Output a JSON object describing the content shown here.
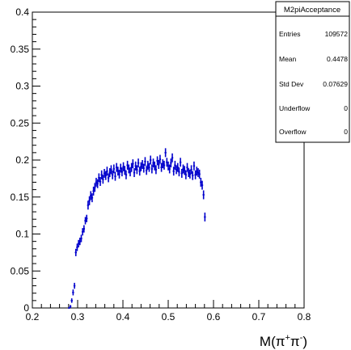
{
  "chart_data": {
    "type": "scatter",
    "style": "histogram-error-bars",
    "xlabel_parts": [
      "M(",
      "π",
      "+",
      "π",
      "-",
      ")"
    ],
    "ylabel": "",
    "xlim": [
      0.2,
      0.8
    ],
    "ylim": [
      0,
      0.4
    ],
    "x_ticks": [
      0.2,
      0.3,
      0.4,
      0.5,
      0.6,
      0.7,
      0.8
    ],
    "x_tick_labels": [
      "0.2",
      "0.3",
      "0.4",
      "0.5",
      "0.6",
      "0.7",
      "0.8"
    ],
    "y_ticks": [
      0,
      0.05,
      0.1,
      0.15,
      0.2,
      0.25,
      0.3,
      0.35,
      0.4
    ],
    "y_tick_labels": [
      "0",
      "0.05",
      "0.1",
      "0.15",
      "0.2",
      "0.25",
      "0.3",
      "0.35",
      "0.4"
    ],
    "grid": false,
    "marker_color": "#0000cc",
    "series": [
      {
        "x": [
          0.281,
          0.284,
          0.287,
          0.29,
          0.293,
          0.296,
          0.299,
          0.302,
          0.305,
          0.308,
          0.311,
          0.314,
          0.317,
          0.32,
          0.323,
          0.326,
          0.329,
          0.332,
          0.335,
          0.338,
          0.341,
          0.344,
          0.347,
          0.35,
          0.353,
          0.356,
          0.359,
          0.362,
          0.365,
          0.368,
          0.371,
          0.374,
          0.377,
          0.38,
          0.383,
          0.386,
          0.389,
          0.392,
          0.395,
          0.398,
          0.401,
          0.404,
          0.407,
          0.41,
          0.413,
          0.416,
          0.419,
          0.422,
          0.425,
          0.428,
          0.431,
          0.434,
          0.437,
          0.44,
          0.443,
          0.446,
          0.449,
          0.452,
          0.455,
          0.458,
          0.461,
          0.464,
          0.467,
          0.47,
          0.473,
          0.476,
          0.479,
          0.482,
          0.485,
          0.488,
          0.491,
          0.494,
          0.497,
          0.5,
          0.503,
          0.506,
          0.509,
          0.512,
          0.515,
          0.518,
          0.521,
          0.524,
          0.527,
          0.53,
          0.533,
          0.536,
          0.539,
          0.542,
          0.545,
          0.548,
          0.551,
          0.554,
          0.557,
          0.56,
          0.563,
          0.566,
          0.569,
          0.572,
          0.575,
          0.578,
          0.581
        ],
        "y": [
          0.0,
          0.002,
          0.01,
          0.021,
          0.03,
          0.075,
          0.082,
          0.087,
          0.09,
          0.094,
          0.103,
          0.107,
          0.118,
          0.121,
          0.139,
          0.145,
          0.152,
          0.149,
          0.158,
          0.163,
          0.17,
          0.168,
          0.176,
          0.171,
          0.18,
          0.174,
          0.182,
          0.179,
          0.185,
          0.176,
          0.183,
          0.187,
          0.18,
          0.188,
          0.178,
          0.19,
          0.185,
          0.181,
          0.189,
          0.184,
          0.191,
          0.186,
          0.18,
          0.193,
          0.188,
          0.184,
          0.19,
          0.195,
          0.183,
          0.192,
          0.187,
          0.196,
          0.185,
          0.191,
          0.194,
          0.189,
          0.198,
          0.186,
          0.193,
          0.19,
          0.2,
          0.188,
          0.196,
          0.192,
          0.187,
          0.199,
          0.194,
          0.201,
          0.19,
          0.195,
          0.193,
          0.21,
          0.197,
          0.192,
          0.188,
          0.196,
          0.203,
          0.185,
          0.193,
          0.187,
          0.19,
          0.184,
          0.197,
          0.182,
          0.188,
          0.186,
          0.18,
          0.19,
          0.183,
          0.181,
          0.187,
          0.179,
          0.192,
          0.18,
          0.185,
          0.183,
          0.181,
          0.17,
          0.166,
          0.153,
          0.123
        ],
        "yerr": [
          0.001,
          0.002,
          0.003,
          0.004,
          0.004,
          0.005,
          0.005,
          0.005,
          0.005,
          0.005,
          0.005,
          0.005,
          0.005,
          0.005,
          0.006,
          0.006,
          0.006,
          0.006,
          0.006,
          0.006,
          0.006,
          0.006,
          0.006,
          0.006,
          0.006,
          0.006,
          0.006,
          0.006,
          0.006,
          0.006,
          0.006,
          0.006,
          0.006,
          0.006,
          0.006,
          0.006,
          0.006,
          0.006,
          0.006,
          0.006,
          0.006,
          0.006,
          0.006,
          0.006,
          0.006,
          0.006,
          0.006,
          0.006,
          0.006,
          0.006,
          0.006,
          0.006,
          0.006,
          0.006,
          0.006,
          0.006,
          0.006,
          0.006,
          0.006,
          0.006,
          0.006,
          0.006,
          0.006,
          0.006,
          0.006,
          0.006,
          0.006,
          0.006,
          0.006,
          0.006,
          0.006,
          0.006,
          0.006,
          0.006,
          0.006,
          0.006,
          0.006,
          0.006,
          0.006,
          0.006,
          0.006,
          0.006,
          0.006,
          0.006,
          0.006,
          0.006,
          0.006,
          0.006,
          0.006,
          0.006,
          0.006,
          0.006,
          0.006,
          0.006,
          0.006,
          0.006,
          0.006,
          0.006,
          0.006,
          0.006,
          0.006
        ]
      }
    ]
  },
  "stats_box": {
    "title": "M2piAcceptance",
    "rows": [
      {
        "label": "Entries",
        "value": "109572"
      },
      {
        "label": "Mean",
        "value": "0.4478"
      },
      {
        "label": "Std Dev",
        "value": "0.07629"
      },
      {
        "label": "Underflow",
        "value": "0"
      },
      {
        "label": "Overflow",
        "value": "0"
      }
    ]
  }
}
